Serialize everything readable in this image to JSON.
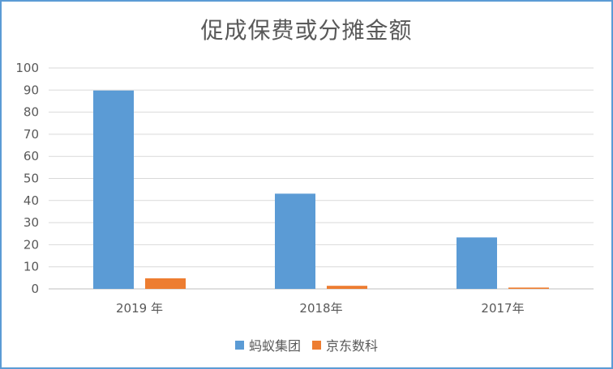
{
  "chart_data": {
    "type": "bar",
    "title": "促成保费或分摊金额",
    "categories": [
      "2019 年",
      "2018年",
      "2017年"
    ],
    "series": [
      {
        "name": "蚂蚁集团",
        "color": "#5b9bd5",
        "values": [
          89.8,
          43.1,
          23.3
        ]
      },
      {
        "name": "京东数科",
        "color": "#ed7d31",
        "values": [
          4.8,
          1.4,
          0.6
        ]
      }
    ],
    "ylim": [
      0,
      100
    ],
    "yticks": [
      0,
      10,
      20,
      30,
      40,
      50,
      60,
      70,
      80,
      90,
      100
    ],
    "grid": true,
    "legend_position": "bottom"
  }
}
